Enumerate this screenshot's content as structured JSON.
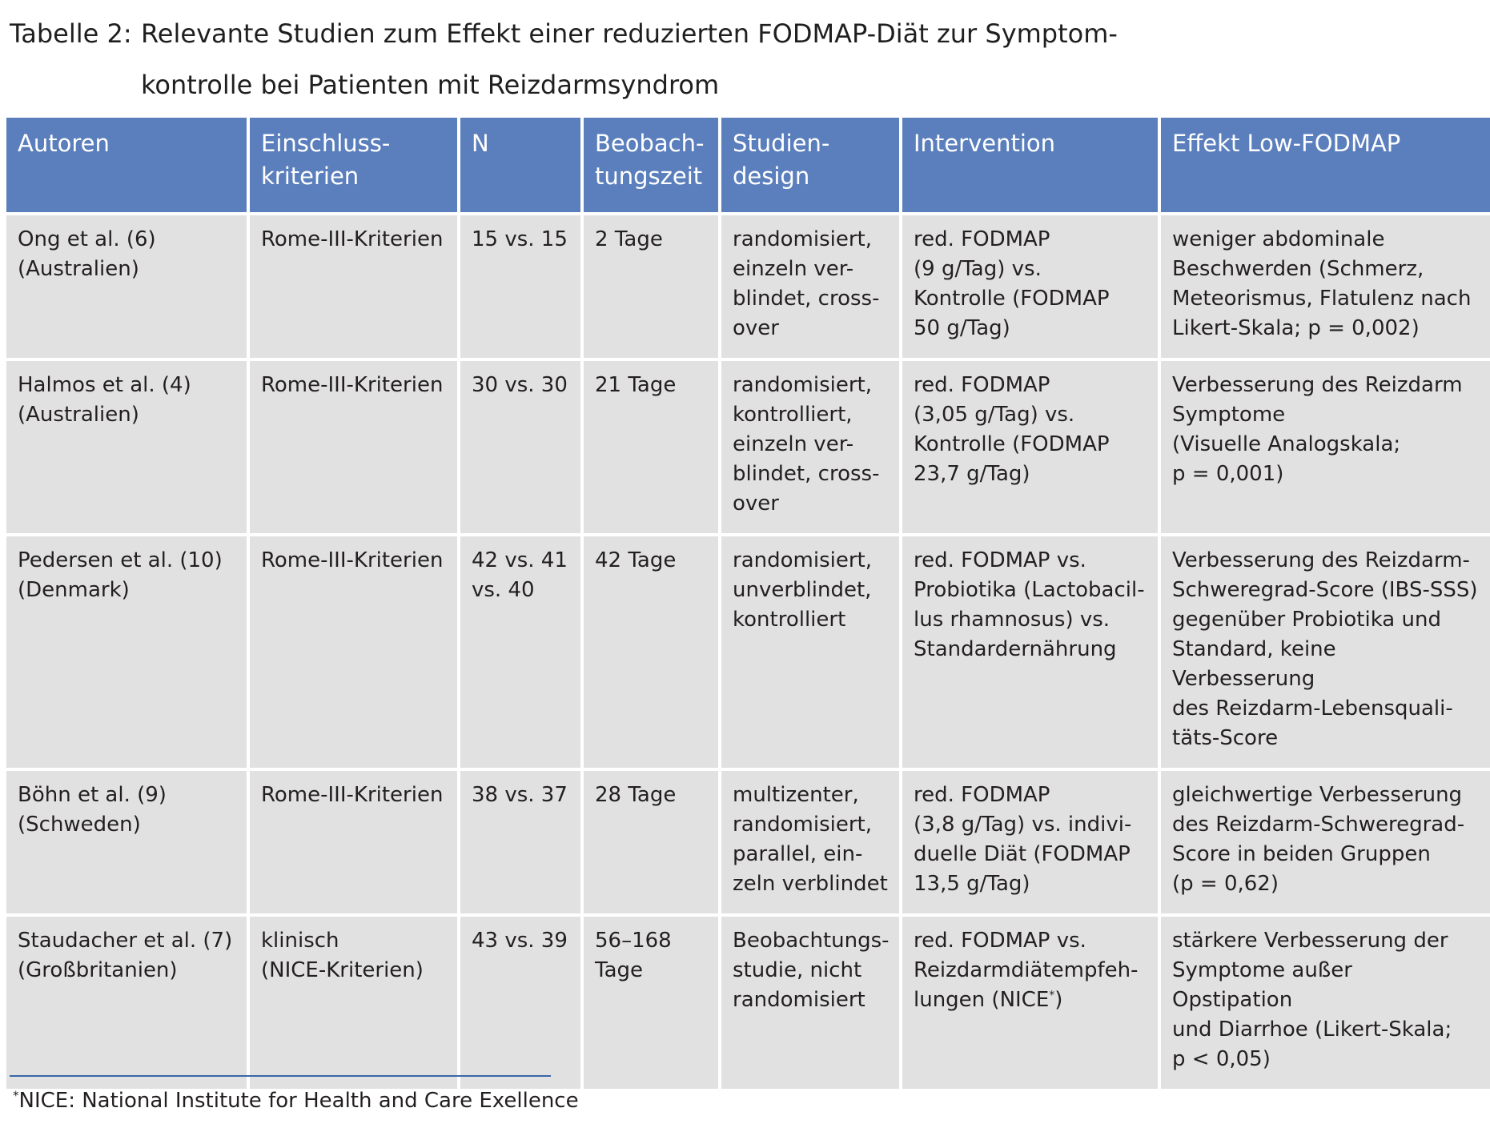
{
  "title": {
    "label": "Tabelle 2:",
    "text": "Relevante Studien zum Effekt einer reduzierten FODMAP-Diät zur Symptom-kontrolle bei Patienten mit Reizdarmsyndrom"
  },
  "table": {
    "headers": [
      "Autoren",
      "Einschluss-\nkriterien",
      "N",
      "Beobach-\ntungszeit",
      "Studien-\ndesign",
      "Intervention",
      "Effekt Low-FODMAP"
    ],
    "rows": [
      {
        "autoren": "Ong et al. (6)\n(Australien)",
        "kriterien": "Rome-III-Kriterien",
        "n": "15 vs. 15",
        "zeit": "2 Tage",
        "design": "randomisiert,\neinzeln ver-\nblindet, cross-\nover",
        "intervention": "red. FODMAP\n(9 g/Tag) vs.\nKontrolle (FODMAP\n50 g/Tag)",
        "effekt": "weniger abdominale\nBeschwerden (Schmerz,\nMeteorismus, Flatulenz nach\nLikert-Skala; p = 0,002)"
      },
      {
        "autoren": "Halmos et al. (4)\n(Australien)",
        "kriterien": "Rome-III-Kriterien",
        "n": "30 vs. 30",
        "zeit": "21 Tage",
        "design": "randomisiert,\nkontrolliert,\neinzeln ver-\nblindet, cross-\nover",
        "intervention": "red. FODMAP\n(3,05 g/Tag) vs.\nKontrolle (FODMAP\n23,7 g/Tag)",
        "effekt": "Verbesserung des Reizdarm\nSymptome\n(Visuelle Analogskala;\np = 0,001)"
      },
      {
        "autoren": "Pedersen et al. (10)\n(Denmark)",
        "kriterien": "Rome-III-Kriterien",
        "n": "42 vs. 41\nvs. 40",
        "zeit": "42 Tage",
        "design": "randomisiert,\nunverblindet,\nkontrolliert",
        "intervention": "red. FODMAP vs.\nProbiotika (Lactobacil-\nlus rhamnosus) vs.\nStandardernährung",
        "effekt": "Verbesserung des Reizdarm-\nSchweregrad-Score (IBS-SSS)\ngegenüber Probiotika und\nStandard, keine Verbesserung\ndes Reizdarm-Lebensquali-\ntäts-Score"
      },
      {
        "autoren": "Böhn et al. (9)\n(Schweden)",
        "kriterien": "Rome-III-Kriterien",
        "n": "38 vs. 37",
        "zeit": "28 Tage",
        "design": "multizenter,\nrandomisiert,\nparallel, ein-\nzeln verblindet",
        "intervention": "red. FODMAP\n(3,8 g/Tag) vs. indivi-\nduelle Diät (FODMAP\n13,5 g/Tag)",
        "effekt": "gleichwertige Verbesserung\ndes Reizdarm-Schweregrad-\nScore in beiden Gruppen\n(p = 0,62)"
      },
      {
        "autoren": "Staudacher et al. (7)\n(Großbritanien)",
        "kriterien": "klinisch\n(NICE-Kriterien)",
        "n": "43 vs. 39",
        "zeit": "56–168\nTage",
        "design": "Beobachtungs-\nstudie, nicht\nrandomisiert",
        "intervention": "red. FODMAP vs.\nReizdarmdiätempfeh-\nlungen (NICE",
        "intervention_sup": "*",
        "intervention_end": ")",
        "effekt": "stärkere Verbesserung der\nSymptome außer Opstipation\nund Diarrhoe (Likert-Skala;\np < 0,05)"
      }
    ]
  },
  "footnote": {
    "mark": "*",
    "text": "NICE: National Institute for Health and Care Exellence"
  }
}
